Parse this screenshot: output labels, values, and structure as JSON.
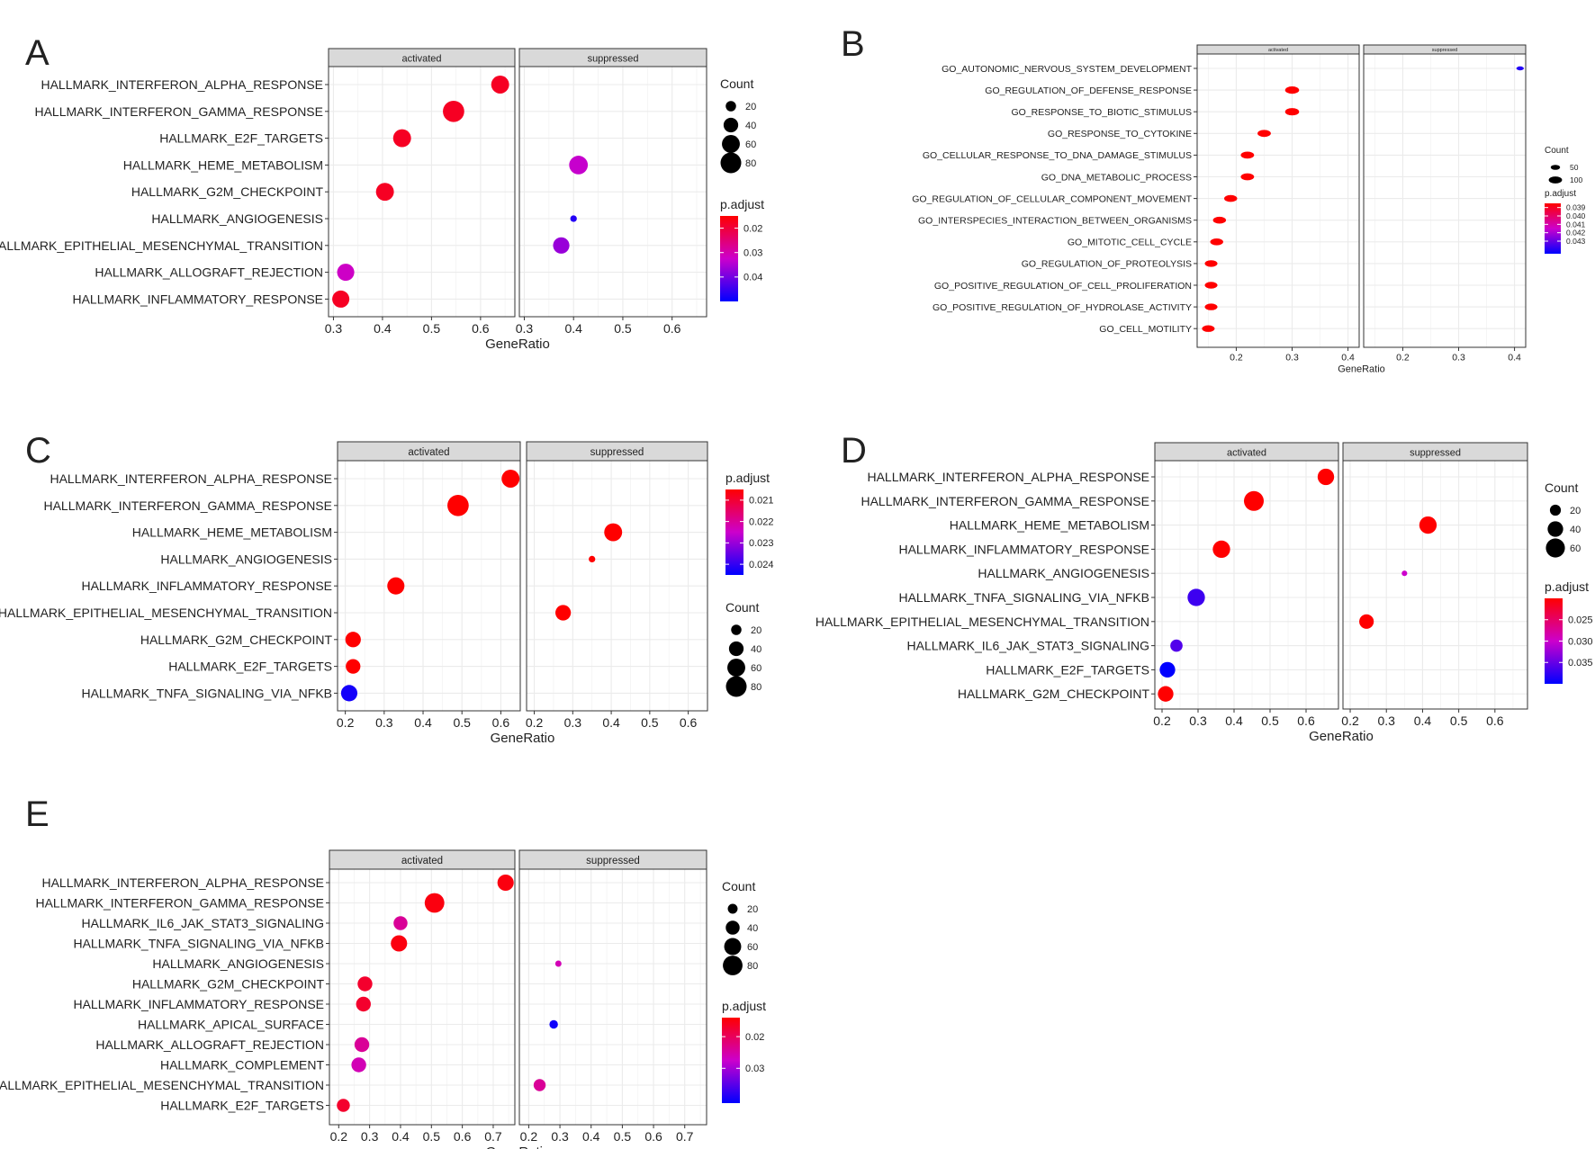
{
  "figure": {
    "colors": {
      "high": "#ff0000",
      "mid": "#cc00cc",
      "low": "#0000ff",
      "strip": "#d9d9d9",
      "grid": "#ebebeb"
    }
  },
  "chart_data": [
    {
      "panel_label": "A",
      "type": "scatter",
      "title": "",
      "xlabel": "GeneRatio",
      "ylabel": "",
      "facets": [
        "activated",
        "suppressed"
      ],
      "xlim": [
        0.29,
        0.67
      ],
      "xticks": [
        "0.3",
        "0.4",
        "0.5",
        "0.6"
      ],
      "categories": [
        "HALLMARK_INTERFERON_ALPHA_RESPONSE",
        "HALLMARK_INTERFERON_GAMMA_RESPONSE",
        "HALLMARK_E2F_TARGETS",
        "HALLMARK_HEME_METABOLISM",
        "HALLMARK_G2M_CHECKPOINT",
        "HALLMARK_ANGIOGENESIS",
        "HALLMARK_EPITHELIAL_MESENCHYMAL_TRANSITION",
        "HALLMARK_ALLOGRAFT_REJECTION",
        "HALLMARK_INFLAMMATORY_RESPONSE"
      ],
      "points": [
        {
          "facet": 0,
          "category": 0,
          "x": 0.64,
          "count": 60,
          "padj": 0.018
        },
        {
          "facet": 0,
          "category": 1,
          "x": 0.545,
          "count": 85,
          "padj": 0.018
        },
        {
          "facet": 0,
          "category": 2,
          "x": 0.44,
          "count": 60,
          "padj": 0.018
        },
        {
          "facet": 1,
          "category": 3,
          "x": 0.41,
          "count": 65,
          "padj": 0.033
        },
        {
          "facet": 0,
          "category": 4,
          "x": 0.405,
          "count": 60,
          "padj": 0.018
        },
        {
          "facet": 1,
          "category": 5,
          "x": 0.4,
          "count": 8,
          "padj": 0.047
        },
        {
          "facet": 1,
          "category": 6,
          "x": 0.375,
          "count": 50,
          "padj": 0.037
        },
        {
          "facet": 0,
          "category": 7,
          "x": 0.325,
          "count": 55,
          "padj": 0.032
        },
        {
          "facet": 0,
          "category": 8,
          "x": 0.315,
          "count": 55,
          "padj": 0.018
        }
      ],
      "size_legend": {
        "title": "Count",
        "labels": [
          "20",
          "40",
          "60",
          "80"
        ],
        "values": [
          20,
          40,
          60,
          80
        ]
      },
      "color_legend": {
        "title": "p.adjust",
        "labels": [
          "0.02",
          "0.03",
          "0.04"
        ],
        "values": [
          0.02,
          0.03,
          0.04
        ],
        "range": [
          0.015,
          0.05
        ]
      }
    },
    {
      "panel_label": "B",
      "type": "scatter",
      "title": "",
      "xlabel": "GeneRatio",
      "ylabel": "",
      "facets": [
        "activated",
        "suppressed"
      ],
      "xlim": [
        0.13,
        0.42
      ],
      "xticks": [
        "0.2",
        "0.3",
        "0.4"
      ],
      "categories": [
        "GO_AUTONOMIC_NERVOUS_SYSTEM_DEVELOPMENT",
        "GO_REGULATION_OF_DEFENSE_RESPONSE",
        "GO_RESPONSE_TO_BIOTIC_STIMULUS",
        "GO_RESPONSE_TO_CYTOKINE",
        "GO_CELLULAR_RESPONSE_TO_DNA_DAMAGE_STIMULUS",
        "GO_DNA_METABOLIC_PROCESS",
        "GO_REGULATION_OF_CELLULAR_COMPONENT_MOVEMENT",
        "GO_INTERSPECIES_INTERACTION_BETWEEN_ORGANISMS",
        "GO_MITOTIC_CELL_CYCLE",
        "GO_REGULATION_OF_PROTEOLYSIS",
        "GO_POSITIVE_REGULATION_OF_CELL_PROLIFERATION",
        "GO_POSITIVE_REGULATION_OF_HYDROLASE_ACTIVITY",
        "GO_CELL_MOTILITY"
      ],
      "points": [
        {
          "facet": 1,
          "category": 0,
          "x": 0.41,
          "count": 15,
          "padj": 0.044
        },
        {
          "facet": 0,
          "category": 1,
          "x": 0.3,
          "count": 110,
          "padj": 0.038
        },
        {
          "facet": 0,
          "category": 2,
          "x": 0.3,
          "count": 110,
          "padj": 0.038
        },
        {
          "facet": 0,
          "category": 3,
          "x": 0.25,
          "count": 100,
          "padj": 0.038
        },
        {
          "facet": 0,
          "category": 4,
          "x": 0.22,
          "count": 100,
          "padj": 0.038
        },
        {
          "facet": 0,
          "category": 5,
          "x": 0.22,
          "count": 100,
          "padj": 0.038
        },
        {
          "facet": 0,
          "category": 6,
          "x": 0.19,
          "count": 95,
          "padj": 0.038
        },
        {
          "facet": 0,
          "category": 7,
          "x": 0.17,
          "count": 95,
          "padj": 0.038
        },
        {
          "facet": 0,
          "category": 8,
          "x": 0.165,
          "count": 95,
          "padj": 0.038
        },
        {
          "facet": 0,
          "category": 9,
          "x": 0.155,
          "count": 90,
          "padj": 0.038
        },
        {
          "facet": 0,
          "category": 10,
          "x": 0.155,
          "count": 90,
          "padj": 0.038
        },
        {
          "facet": 0,
          "category": 11,
          "x": 0.155,
          "count": 90,
          "padj": 0.038
        },
        {
          "facet": 0,
          "category": 12,
          "x": 0.15,
          "count": 90,
          "padj": 0.038
        }
      ],
      "size_legend": {
        "title": "Count",
        "labels": [
          "50",
          "100"
        ],
        "values": [
          50,
          100
        ]
      },
      "color_legend": {
        "title": "p.adjust",
        "labels": [
          "0.039",
          "0.040",
          "0.041",
          "0.042",
          "0.043"
        ],
        "values": [
          0.039,
          0.04,
          0.041,
          0.042,
          0.043
        ],
        "range": [
          0.0385,
          0.0445
        ]
      }
    },
    {
      "panel_label": "C",
      "type": "scatter",
      "title": "",
      "xlabel": "GeneRatio",
      "ylabel": "",
      "facets": [
        "activated",
        "suppressed"
      ],
      "xlim": [
        0.18,
        0.65
      ],
      "xticks": [
        "0.2",
        "0.3",
        "0.4",
        "0.5",
        "0.6"
      ],
      "categories": [
        "HALLMARK_INTERFERON_ALPHA_RESPONSE",
        "HALLMARK_INTERFERON_GAMMA_RESPONSE",
        "HALLMARK_HEME_METABOLISM",
        "HALLMARK_ANGIOGENESIS",
        "HALLMARK_INFLAMMATORY_RESPONSE",
        "HALLMARK_EPITHELIAL_MESENCHYMAL_TRANSITION",
        "HALLMARK_G2M_CHECKPOINT",
        "HALLMARK_E2F_TARGETS",
        "HALLMARK_TNFA_SIGNALING_VIA_NFKB"
      ],
      "points": [
        {
          "facet": 0,
          "category": 0,
          "x": 0.625,
          "count": 60,
          "padj": 0.0205
        },
        {
          "facet": 0,
          "category": 1,
          "x": 0.49,
          "count": 85,
          "padj": 0.0205
        },
        {
          "facet": 1,
          "category": 2,
          "x": 0.405,
          "count": 60,
          "padj": 0.0205
        },
        {
          "facet": 1,
          "category": 3,
          "x": 0.35,
          "count": 8,
          "padj": 0.0205
        },
        {
          "facet": 0,
          "category": 4,
          "x": 0.33,
          "count": 55,
          "padj": 0.0205
        },
        {
          "facet": 1,
          "category": 5,
          "x": 0.275,
          "count": 45,
          "padj": 0.0205
        },
        {
          "facet": 0,
          "category": 6,
          "x": 0.22,
          "count": 45,
          "padj": 0.0205
        },
        {
          "facet": 0,
          "category": 7,
          "x": 0.22,
          "count": 40,
          "padj": 0.0205
        },
        {
          "facet": 0,
          "category": 8,
          "x": 0.21,
          "count": 50,
          "padj": 0.0243
        }
      ],
      "size_legend": {
        "title": "Count",
        "labels": [
          "20",
          "40",
          "60",
          "80"
        ],
        "values": [
          20,
          40,
          60,
          80
        ]
      },
      "color_legend": {
        "title": "p.adjust",
        "labels": [
          "0.021",
          "0.022",
          "0.023",
          "0.024"
        ],
        "values": [
          0.021,
          0.022,
          0.023,
          0.024
        ],
        "range": [
          0.0205,
          0.0245
        ]
      }
    },
    {
      "panel_label": "D",
      "type": "scatter",
      "title": "",
      "xlabel": "GeneRatio",
      "ylabel": "",
      "facets": [
        "activated",
        "suppressed"
      ],
      "xlim": [
        0.18,
        0.69
      ],
      "xticks": [
        "0.2",
        "0.3",
        "0.4",
        "0.5",
        "0.6"
      ],
      "categories": [
        "HALLMARK_INTERFERON_ALPHA_RESPONSE",
        "HALLMARK_INTERFERON_GAMMA_RESPONSE",
        "HALLMARK_HEME_METABOLISM",
        "HALLMARK_INFLAMMATORY_RESPONSE",
        "HALLMARK_ANGIOGENESIS",
        "HALLMARK_TNFA_SIGNALING_VIA_NFKB",
        "HALLMARK_EPITHELIAL_MESENCHYMAL_TRANSITION",
        "HALLMARK_IL6_JAK_STAT3_SIGNALING",
        "HALLMARK_E2F_TARGETS",
        "HALLMARK_G2M_CHECKPOINT"
      ],
      "points": [
        {
          "facet": 0,
          "category": 0,
          "x": 0.655,
          "count": 45,
          "padj": 0.02
        },
        {
          "facet": 0,
          "category": 1,
          "x": 0.455,
          "count": 65,
          "padj": 0.02
        },
        {
          "facet": 1,
          "category": 2,
          "x": 0.415,
          "count": 50,
          "padj": 0.02
        },
        {
          "facet": 0,
          "category": 3,
          "x": 0.365,
          "count": 50,
          "padj": 0.02
        },
        {
          "facet": 1,
          "category": 4,
          "x": 0.35,
          "count": 5,
          "padj": 0.03
        },
        {
          "facet": 0,
          "category": 5,
          "x": 0.295,
          "count": 50,
          "padj": 0.037
        },
        {
          "facet": 1,
          "category": 6,
          "x": 0.245,
          "count": 35,
          "padj": 0.02
        },
        {
          "facet": 0,
          "category": 7,
          "x": 0.24,
          "count": 25,
          "padj": 0.036
        },
        {
          "facet": 0,
          "category": 8,
          "x": 0.215,
          "count": 40,
          "padj": 0.04
        },
        {
          "facet": 0,
          "category": 9,
          "x": 0.21,
          "count": 40,
          "padj": 0.02
        }
      ],
      "size_legend": {
        "title": "Count",
        "labels": [
          "20",
          "40",
          "60"
        ],
        "values": [
          20,
          40,
          60
        ]
      },
      "color_legend": {
        "title": "p.adjust",
        "labels": [
          "0.025",
          "0.030",
          "0.035"
        ],
        "values": [
          0.025,
          0.03,
          0.035
        ],
        "range": [
          0.02,
          0.04
        ]
      }
    },
    {
      "panel_label": "E",
      "type": "scatter",
      "title": "",
      "xlabel": "GeneRatio",
      "ylabel": "",
      "facets": [
        "activated",
        "suppressed"
      ],
      "xlim": [
        0.17,
        0.77
      ],
      "xticks": [
        "0.2",
        "0.3",
        "0.4",
        "0.5",
        "0.6",
        "0.7"
      ],
      "categories": [
        "HALLMARK_INTERFERON_ALPHA_RESPONSE",
        "HALLMARK_INTERFERON_GAMMA_RESPONSE",
        "HALLMARK_IL6_JAK_STAT3_SIGNALING",
        "HALLMARK_TNFA_SIGNALING_VIA_NFKB",
        "HALLMARK_ANGIOGENESIS",
        "HALLMARK_G2M_CHECKPOINT",
        "HALLMARK_INFLAMMATORY_RESPONSE",
        "HALLMARK_APICAL_SURFACE",
        "HALLMARK_ALLOGRAFT_REJECTION",
        "HALLMARK_COMPLEMENT",
        "HALLMARK_EPITHELIAL_MESENCHYMAL_TRANSITION",
        "HALLMARK_E2F_TARGETS"
      ],
      "points": [
        {
          "facet": 0,
          "category": 0,
          "x": 0.74,
          "count": 55,
          "padj": 0.015
        },
        {
          "facet": 0,
          "category": 1,
          "x": 0.51,
          "count": 80,
          "padj": 0.015
        },
        {
          "facet": 0,
          "category": 2,
          "x": 0.4,
          "count": 40,
          "padj": 0.024
        },
        {
          "facet": 0,
          "category": 3,
          "x": 0.395,
          "count": 55,
          "padj": 0.015
        },
        {
          "facet": 1,
          "category": 4,
          "x": 0.295,
          "count": 8,
          "padj": 0.026
        },
        {
          "facet": 0,
          "category": 5,
          "x": 0.285,
          "count": 45,
          "padj": 0.017
        },
        {
          "facet": 0,
          "category": 6,
          "x": 0.28,
          "count": 45,
          "padj": 0.017
        },
        {
          "facet": 1,
          "category": 7,
          "x": 0.28,
          "count": 15,
          "padj": 0.04
        },
        {
          "facet": 0,
          "category": 8,
          "x": 0.275,
          "count": 45,
          "padj": 0.024
        },
        {
          "facet": 0,
          "category": 9,
          "x": 0.265,
          "count": 45,
          "padj": 0.026
        },
        {
          "facet": 1,
          "category": 10,
          "x": 0.235,
          "count": 30,
          "padj": 0.024
        },
        {
          "facet": 0,
          "category": 11,
          "x": 0.215,
          "count": 35,
          "padj": 0.017
        }
      ],
      "size_legend": {
        "title": "Count",
        "labels": [
          "20",
          "40",
          "60",
          "80"
        ],
        "values": [
          20,
          40,
          60,
          80
        ]
      },
      "color_legend": {
        "title": "p.adjust",
        "labels": [
          "0.02",
          "0.03"
        ],
        "values": [
          0.02,
          0.03
        ],
        "range": [
          0.014,
          0.041
        ]
      }
    }
  ]
}
